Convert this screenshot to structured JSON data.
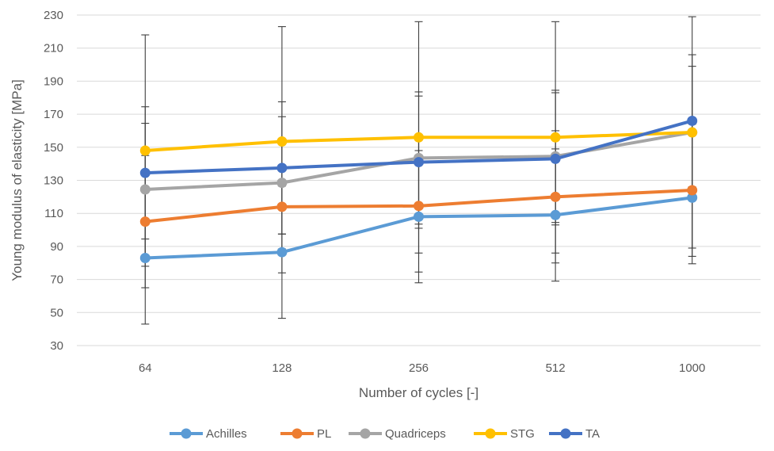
{
  "chart_data": {
    "type": "line",
    "categories": [
      "64",
      "128",
      "256",
      "512",
      "1000"
    ],
    "xlabel": "Number of cycles [-]",
    "ylabel": "Young modulus of elasticity [MPa]",
    "ylim": [
      30,
      230
    ],
    "yticks": [
      30,
      50,
      70,
      90,
      110,
      130,
      150,
      170,
      190,
      210,
      230
    ],
    "grid": true,
    "legend_position": "bottom",
    "error_bars": true,
    "series": [
      {
        "name": "Achilles",
        "color": "#5B9BD5",
        "values": [
          83,
          86.5,
          108,
          109,
          119.5
        ],
        "err_low": [
          43,
          46.5,
          68,
          69,
          79.5
        ],
        "err_high": [
          123,
          126.5,
          148,
          149,
          159.5
        ]
      },
      {
        "name": "PL",
        "color": "#ED7D31",
        "values": [
          105,
          114,
          114.5,
          120,
          124
        ],
        "err_low": [
          65,
          74,
          74.5,
          80,
          84
        ],
        "err_high": [
          145,
          154,
          154.5,
          160,
          164
        ]
      },
      {
        "name": "Quadriceps",
        "color": "#A5A5A5",
        "values": [
          124.5,
          128.5,
          143.5,
          144.5,
          159
        ],
        "err_low": [
          84.5,
          88.5,
          103.5,
          104.5,
          119
        ],
        "err_high": [
          164.5,
          168.5,
          183.5,
          184.5,
          199
        ]
      },
      {
        "name": "STG",
        "color": "#FFC000",
        "values": [
          148,
          153.5,
          156,
          156,
          159
        ],
        "err_low": [
          78,
          97.5,
          86,
          86,
          89
        ],
        "err_high": [
          218,
          223,
          226,
          226,
          229
        ]
      },
      {
        "name": "TA",
        "color": "#4472C4",
        "values": [
          134.5,
          137.5,
          141,
          143,
          166
        ],
        "err_low": [
          94.5,
          97.5,
          101,
          103,
          126
        ],
        "err_high": [
          174.5,
          177.5,
          181,
          183,
          206
        ]
      }
    ]
  }
}
